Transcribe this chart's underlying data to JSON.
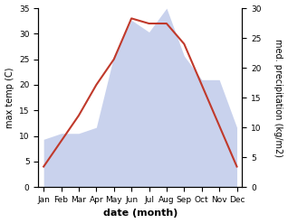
{
  "months": [
    "Jan",
    "Feb",
    "Mar",
    "Apr",
    "May",
    "Jun",
    "Jul",
    "Aug",
    "Sep",
    "Oct",
    "Nov",
    "Dec"
  ],
  "temperature": [
    4,
    9,
    14,
    20,
    25,
    33,
    32,
    32,
    28,
    20,
    12,
    4
  ],
  "precipitation": [
    8,
    9,
    9,
    10,
    22,
    28,
    26,
    30,
    22,
    18,
    18,
    10
  ],
  "temp_ylim": [
    0,
    35
  ],
  "precip_ylim": [
    0,
    30
  ],
  "temp_color": "#c0392b",
  "precip_fill_color": "#b8c4e8",
  "xlabel": "date (month)",
  "ylabel_left": "max temp (C)",
  "ylabel_right": "med. precipitation (kg/m2)",
  "bg_color": "#ffffff",
  "label_fontsize": 7,
  "tick_fontsize": 6.5
}
